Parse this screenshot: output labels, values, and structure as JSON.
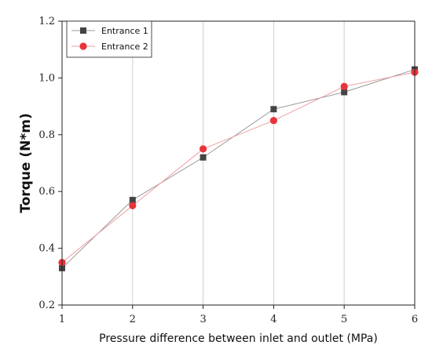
{
  "chart_data": {
    "type": "line",
    "xlabel": "Pressure difference between inlet and outlet (MPa)",
    "ylabel": "Torque (N*m)",
    "x": [
      1,
      2,
      3,
      4,
      5,
      6
    ],
    "xlim": [
      1,
      6
    ],
    "ylim": [
      0.2,
      1.2
    ],
    "x_ticks": [
      "1",
      "2",
      "3",
      "4",
      "5",
      "6"
    ],
    "y_ticks": [
      "0.2",
      "0.4",
      "0.6",
      "0.8",
      "1.0",
      "1.2"
    ],
    "y_tick_values": [
      0.2,
      0.4,
      0.6,
      0.8,
      1.0,
      1.2
    ],
    "grid": "vertical",
    "legend_position": "top-left",
    "series": [
      {
        "name": "Entrance 1",
        "values": [
          0.33,
          0.57,
          0.72,
          0.89,
          0.95,
          1.03
        ],
        "marker": "square",
        "color": "#444444",
        "line_color": "#9a9a9a"
      },
      {
        "name": "Entrance 2",
        "values": [
          0.35,
          0.55,
          0.75,
          0.85,
          0.97,
          1.02
        ],
        "marker": "circle",
        "color": "#e8343a",
        "line_color": "#f0a0a4"
      }
    ]
  }
}
